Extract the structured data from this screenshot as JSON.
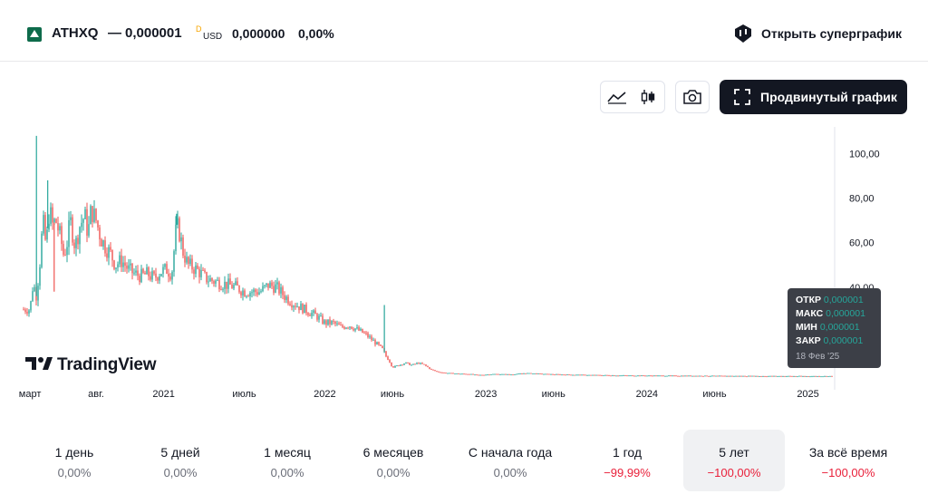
{
  "header": {
    "ticker": "ATHXQ",
    "dash": "—",
    "price": "0,000001",
    "price_sup": "D",
    "currency": "USD",
    "change": "0,000000",
    "change_pct": "0,00%",
    "supergraph_label": "Открыть суперграфик"
  },
  "toolbar": {
    "advanced_chart_label": "Продвинутый график"
  },
  "watermark": {
    "name": "TradingView"
  },
  "tooltip": {
    "rows": [
      {
        "label": "ОТКР",
        "value": "0,000001"
      },
      {
        "label": "МАКС",
        "value": "0,000001"
      },
      {
        "label": "МИН",
        "value": "0,000001"
      },
      {
        "label": "ЗАКР",
        "value": "0,000001"
      }
    ],
    "date": "18 Фев '25"
  },
  "chart_data": {
    "type": "candlestick",
    "y_ticks": [
      "100,00",
      "80,00",
      "60,00",
      "40,00"
    ],
    "y_tick_values": [
      100,
      80,
      60,
      40
    ],
    "ylim": [
      -2,
      112
    ],
    "xlim": [
      2020.13,
      2025.16
    ],
    "x_ticks": [
      {
        "label": "март",
        "t": 2020.17
      },
      {
        "label": "авг.",
        "t": 2020.58
      },
      {
        "label": "2021",
        "t": 2021.0
      },
      {
        "label": "июль",
        "t": 2021.5
      },
      {
        "label": "2022",
        "t": 2022.0
      },
      {
        "label": "июнь",
        "t": 2022.42
      },
      {
        "label": "2023",
        "t": 2023.0
      },
      {
        "label": "июнь",
        "t": 2023.42
      },
      {
        "label": "2024",
        "t": 2024.0
      },
      {
        "label": "июнь",
        "t": 2024.42
      },
      {
        "label": "2025",
        "t": 2025.0
      }
    ],
    "close_series": [
      [
        2020.13,
        30
      ],
      [
        2020.17,
        30
      ],
      [
        2020.19,
        42
      ],
      [
        2020.21,
        36
      ],
      [
        2020.23,
        50
      ],
      [
        2020.25,
        70
      ],
      [
        2020.27,
        58
      ],
      [
        2020.29,
        75
      ],
      [
        2020.31,
        68
      ],
      [
        2020.33,
        70
      ],
      [
        2020.36,
        62
      ],
      [
        2020.38,
        54
      ],
      [
        2020.4,
        60
      ],
      [
        2020.42,
        70
      ],
      [
        2020.45,
        58
      ],
      [
        2020.48,
        68
      ],
      [
        2020.51,
        72
      ],
      [
        2020.53,
        64
      ],
      [
        2020.55,
        75
      ],
      [
        2020.58,
        70
      ],
      [
        2020.61,
        62
      ],
      [
        2020.64,
        58
      ],
      [
        2020.67,
        55
      ],
      [
        2020.7,
        50
      ],
      [
        2020.74,
        52
      ],
      [
        2020.78,
        48
      ],
      [
        2020.82,
        46
      ],
      [
        2020.86,
        45
      ],
      [
        2020.9,
        46
      ],
      [
        2020.94,
        44
      ],
      [
        2020.98,
        47
      ],
      [
        2021.02,
        48
      ],
      [
        2021.05,
        46
      ],
      [
        2021.08,
        68
      ],
      [
        2021.1,
        64
      ],
      [
        2021.12,
        56
      ],
      [
        2021.15,
        50
      ],
      [
        2021.18,
        49
      ],
      [
        2021.22,
        47
      ],
      [
        2021.26,
        44
      ],
      [
        2021.3,
        43
      ],
      [
        2021.35,
        42
      ],
      [
        2021.4,
        41
      ],
      [
        2021.45,
        40
      ],
      [
        2021.5,
        38
      ],
      [
        2021.55,
        38
      ],
      [
        2021.6,
        38
      ],
      [
        2021.65,
        41
      ],
      [
        2021.7,
        40
      ],
      [
        2021.75,
        36
      ],
      [
        2021.8,
        33
      ],
      [
        2021.85,
        31
      ],
      [
        2021.9,
        29
      ],
      [
        2021.95,
        27
      ],
      [
        2022.0,
        24
      ],
      [
        2022.05,
        24
      ],
      [
        2022.1,
        22
      ],
      [
        2022.15,
        23
      ],
      [
        2022.2,
        21
      ],
      [
        2022.25,
        19
      ],
      [
        2022.3,
        16
      ],
      [
        2022.33,
        14
      ],
      [
        2022.36,
        12
      ],
      [
        2022.38,
        9
      ],
      [
        2022.4,
        7
      ],
      [
        2022.42,
        4
      ],
      [
        2022.46,
        5
      ],
      [
        2022.5,
        6
      ],
      [
        2022.54,
        5
      ],
      [
        2022.58,
        6
      ],
      [
        2022.62,
        5
      ],
      [
        2022.66,
        3
      ],
      [
        2022.7,
        2
      ],
      [
        2022.75,
        1.5
      ],
      [
        2022.82,
        1.2
      ],
      [
        2022.9,
        1.0
      ],
      [
        2022.95,
        0.5
      ],
      [
        2023.05,
        1.0
      ],
      [
        2023.15,
        0.8
      ],
      [
        2023.25,
        1.4
      ],
      [
        2023.4,
        0.9
      ],
      [
        2023.6,
        0.6
      ],
      [
        2023.8,
        0.4
      ],
      [
        2024.0,
        0.3
      ],
      [
        2024.3,
        0.2
      ],
      [
        2024.6,
        0.1
      ],
      [
        2024.9,
        0.05
      ],
      [
        2025.14,
        0.01
      ]
    ],
    "spikes": [
      {
        "t": 2020.21,
        "high": 108
      },
      {
        "t": 2020.28,
        "high": 88
      },
      {
        "t": 2020.32,
        "low": 38
      },
      {
        "t": 2021.08,
        "high": 73
      },
      {
        "t": 2022.37,
        "high": 32
      }
    ],
    "colors": {
      "up": "#26a69a",
      "down": "#ef5350"
    }
  },
  "periods": [
    {
      "label": "1 день",
      "value": "0,00%",
      "negative": false
    },
    {
      "label": "5 дней",
      "value": "0,00%",
      "negative": false
    },
    {
      "label": "1 месяц",
      "value": "0,00%",
      "negative": false
    },
    {
      "label": "6 месяцев",
      "value": "0,00%",
      "negative": false
    },
    {
      "label": "С начала года",
      "value": "0,00%",
      "negative": false
    },
    {
      "label": "1 год",
      "value": "−99,99%",
      "negative": true
    },
    {
      "label": "5 лет",
      "value": "−100,00%",
      "negative": true,
      "active": true
    },
    {
      "label": "За всё время",
      "value": "−100,00%",
      "negative": true
    }
  ]
}
